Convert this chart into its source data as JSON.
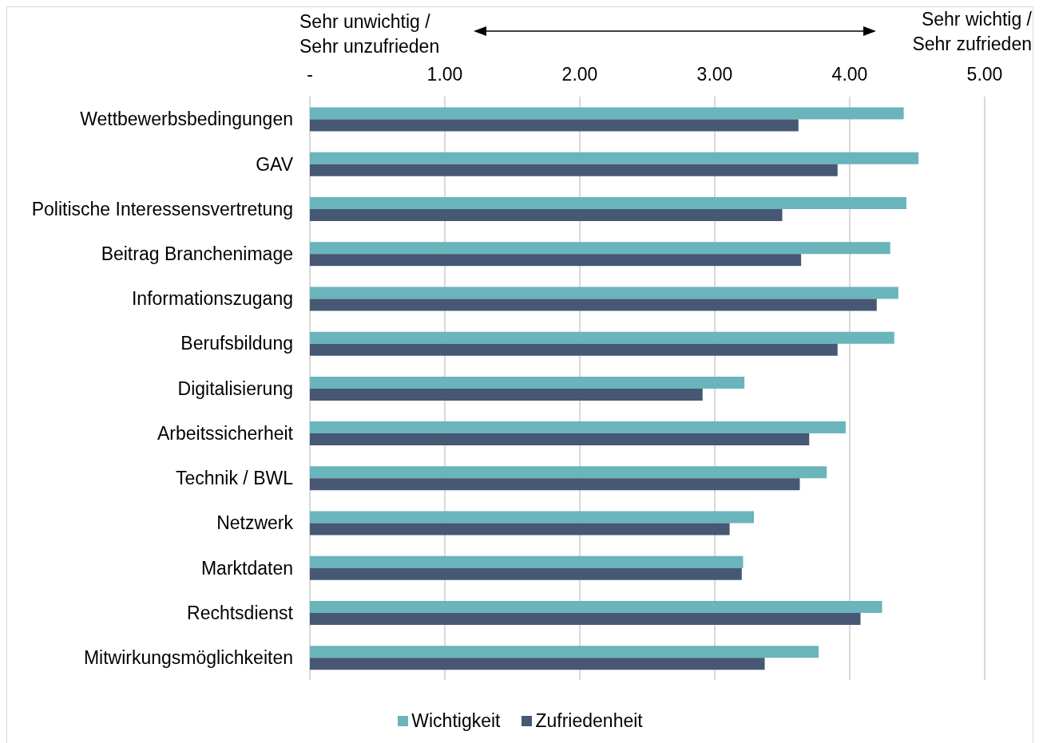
{
  "chart_data": {
    "type": "bar",
    "orientation": "horizontal",
    "categories": [
      "Wettbewerbsbedingungen",
      "GAV",
      "Politische Interessensvertretung",
      "Beitrag Branchenimage",
      "Informationszugang",
      "Berufsbildung",
      "Digitalisierung",
      "Arbeitssicherheit",
      "Technik / BWL",
      "Netzwerk",
      "Marktdaten",
      "Rechtsdienst",
      "Mitwirkungsmöglichkeiten"
    ],
    "series": [
      {
        "name": "Wichtigkeit",
        "color": "#6ab4bc",
        "values": [
          4.4,
          4.51,
          4.42,
          4.3,
          4.36,
          4.33,
          3.22,
          3.97,
          3.83,
          3.29,
          3.21,
          4.24,
          3.77
        ]
      },
      {
        "name": "Zufriedenheit",
        "color": "#465873",
        "values": [
          3.62,
          3.91,
          3.5,
          3.64,
          4.2,
          3.91,
          2.91,
          3.7,
          3.63,
          3.11,
          3.2,
          4.08,
          3.37
        ]
      }
    ],
    "xlim": [
      0,
      5
    ],
    "xticks": [
      {
        "value": 0,
        "label": "-"
      },
      {
        "value": 1,
        "label": "1.00"
      },
      {
        "value": 2,
        "label": "2.00"
      },
      {
        "value": 3,
        "label": "3.00"
      },
      {
        "value": 4,
        "label": "4.00"
      },
      {
        "value": 5,
        "label": "5.00"
      }
    ],
    "annotations": [
      "Sehr unwichtig /\nSehr unzufrieden",
      "Sehr wichtig /\nSehr zufrieden"
    ],
    "grid": "x",
    "legend": "bottom"
  }
}
